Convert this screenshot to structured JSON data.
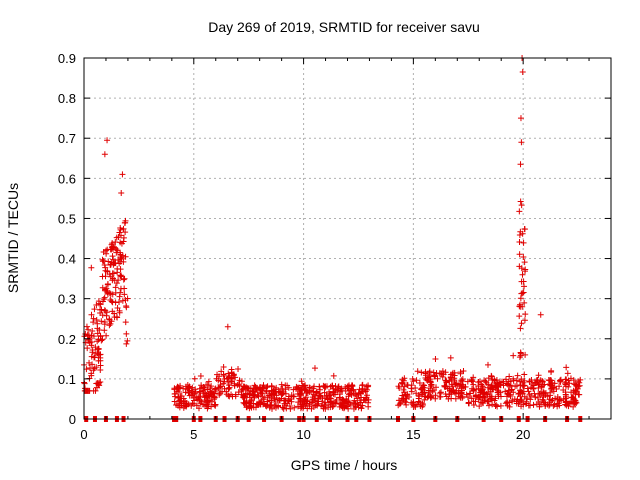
{
  "chart_data": {
    "type": "scatter",
    "title": "Day 269 of 2019, SRMTID for receiver savu",
    "xlabel": "GPS time / hours",
    "ylabel": "SRMTID / TECUs",
    "xlim": [
      0,
      24
    ],
    "ylim": [
      0,
      0.9
    ],
    "x_ticks": [
      "0",
      "5",
      "10",
      "15",
      "20"
    ],
    "y_ticks": [
      "0",
      "0.1",
      "0.2",
      "0.3",
      "0.4",
      "0.5",
      "0.6",
      "0.7",
      "0.8",
      "0.9"
    ],
    "grid": true,
    "marker": "+",
    "color": "#e00000",
    "segments": [
      {
        "start": 0.0,
        "end": 2.0,
        "note": "active period, values roughly 0.1–0.7"
      },
      {
        "start": 4.1,
        "end": 13.0,
        "note": "quiet period, values roughly 0.02–0.12"
      },
      {
        "start": 14.3,
        "end": 22.6,
        "note": "quiet period with burst near 19.8–20.1 up to 0.9"
      }
    ],
    "highlight_points": [
      {
        "x": 1.05,
        "y": 0.695
      },
      {
        "x": 0.95,
        "y": 0.66
      },
      {
        "x": 1.75,
        "y": 0.61
      },
      {
        "x": 19.95,
        "y": 0.9
      },
      {
        "x": 19.98,
        "y": 0.865
      },
      {
        "x": 19.9,
        "y": 0.75
      },
      {
        "x": 19.92,
        "y": 0.69
      },
      {
        "x": 19.88,
        "y": 0.635
      },
      {
        "x": 6.55,
        "y": 0.23
      },
      {
        "x": 20.8,
        "y": 0.26
      }
    ],
    "zero_markers_x": [
      0.1,
      0.5,
      1.0,
      1.5,
      1.8,
      4.1,
      4.2,
      5.0,
      5.3,
      6.0,
      6.4,
      7.0,
      7.5,
      8.2,
      9.0,
      9.8,
      10.0,
      10.6,
      11.2,
      12.0,
      12.4,
      13.0,
      14.3,
      15.0,
      16.0,
      17.0,
      18.2,
      19.0,
      19.8,
      20.2,
      21.0,
      22.0,
      22.6
    ]
  }
}
